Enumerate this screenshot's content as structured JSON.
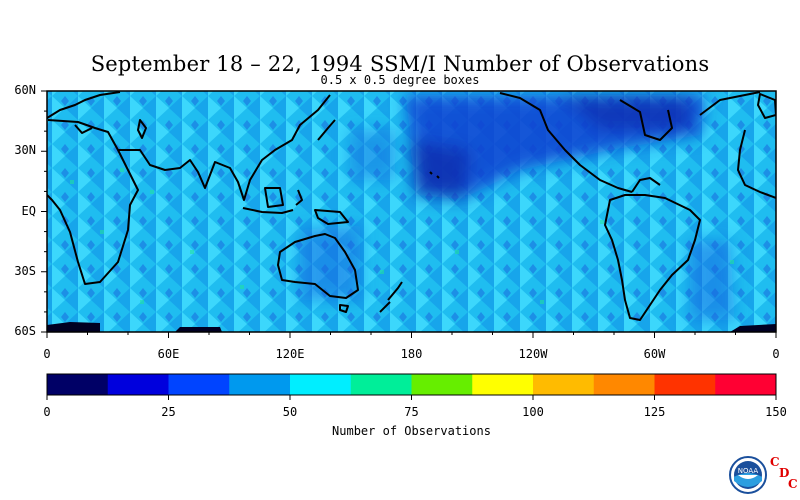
{
  "title": "September 18 – 22, 1994 SSM/I Number of Observations",
  "subtitle": "0.5 x 0.5 degree boxes",
  "map": {
    "lat_labels": [
      "60N",
      "30N",
      "EQ",
      "30S",
      "60S"
    ],
    "lon_labels": [
      "0",
      "60E",
      "120E",
      "180",
      "120W",
      "60W",
      "0"
    ],
    "lat_range": [
      -60,
      60
    ],
    "lon_range": [
      0,
      360
    ]
  },
  "colorbar": {
    "title": "Number of Observations",
    "tick_labels": [
      "0",
      "25",
      "50",
      "75",
      "100",
      "125",
      "150"
    ],
    "colors": [
      "#000066",
      "#0000dd",
      "#0044ff",
      "#0099ee",
      "#00eeff",
      "#00ee99",
      "#66ee00",
      "#ffff00",
      "#ffbb00",
      "#ff8800",
      "#ff3300",
      "#ff0033"
    ],
    "range": [
      0,
      150
    ]
  },
  "logo": {
    "name": "noaa-logo-icon",
    "text": "NOAA",
    "letters": [
      "C",
      "D",
      "C"
    ]
  }
}
